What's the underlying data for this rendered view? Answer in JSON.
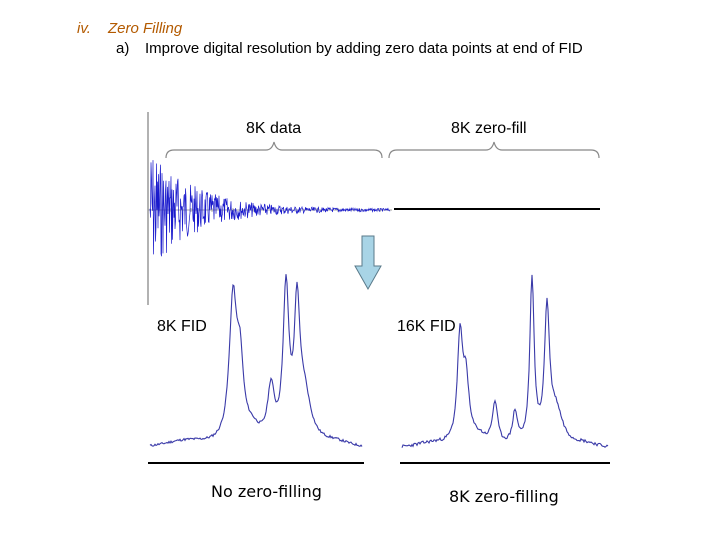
{
  "heading": {
    "numeral": "iv.",
    "title": "Zero Filling",
    "item_marker": "a)",
    "item_text": "Improve digital resolution by adding zero data points at end of FID"
  },
  "labels": {
    "data_brace": "8K data",
    "zero_fill_brace": "8K zero-fill",
    "left_spectrum": "8K FID",
    "right_spectrum": "16K FID",
    "left_caption": "No zero-filling",
    "right_caption": "8K zero-filling"
  },
  "colors": {
    "fid": "#1a1acc",
    "spectrum": "#3a3aa8",
    "arrow_fill": "#a8d4e6",
    "arrow_stroke": "#5a7a8a",
    "title_accent": "#b35a00"
  }
}
